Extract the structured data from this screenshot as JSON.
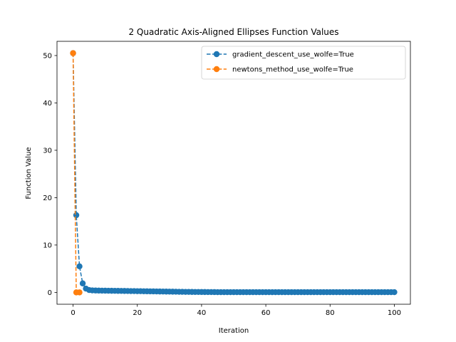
{
  "chart_data": {
    "type": "line",
    "title": "2 Quadratic Axis-Aligned Ellipses Function Values",
    "xlabel": "Iteration",
    "ylabel": "Function Value",
    "xlim": [
      -5,
      105
    ],
    "ylim": [
      -2.5,
      53
    ],
    "xticks": [
      0,
      20,
      40,
      60,
      80,
      100
    ],
    "yticks": [
      0,
      10,
      20,
      30,
      40,
      50
    ],
    "grid": false,
    "legend_position": "top-right",
    "series": [
      {
        "name": "gradient_descent_use_wolfe=True",
        "color": "#1f77b4",
        "linestyle": "dashed",
        "marker": "circle",
        "x": [
          0,
          1,
          2,
          3,
          4,
          5,
          6,
          7,
          8,
          9,
          10,
          11,
          12,
          13,
          14,
          15,
          16,
          17,
          18,
          19,
          20,
          21,
          22,
          23,
          24,
          25,
          26,
          27,
          28,
          29,
          30,
          31,
          32,
          33,
          34,
          35,
          36,
          37,
          38,
          39,
          40,
          41,
          42,
          43,
          44,
          45,
          46,
          47,
          48,
          49,
          50,
          51,
          52,
          53,
          54,
          55,
          56,
          57,
          58,
          59,
          60,
          61,
          62,
          63,
          64,
          65,
          66,
          67,
          68,
          69,
          70,
          71,
          72,
          73,
          74,
          75,
          76,
          77,
          78,
          79,
          80,
          81,
          82,
          83,
          84,
          85,
          86,
          87,
          88,
          89,
          90,
          91,
          92,
          93,
          94,
          95,
          96,
          97,
          98,
          99,
          100
        ],
        "y": [
          50.5,
          16.3,
          5.5,
          1.9,
          0.8,
          0.5,
          0.42,
          0.4,
          0.38,
          0.37,
          0.36,
          0.35,
          0.34,
          0.33,
          0.32,
          0.31,
          0.3,
          0.29,
          0.28,
          0.27,
          0.26,
          0.25,
          0.24,
          0.23,
          0.22,
          0.21,
          0.2,
          0.19,
          0.18,
          0.17,
          0.16,
          0.15,
          0.14,
          0.13,
          0.12,
          0.11,
          0.1,
          0.095,
          0.09,
          0.085,
          0.08,
          0.075,
          0.07,
          0.065,
          0.06,
          0.055,
          0.05,
          0.05,
          0.05,
          0.05,
          0.05,
          0.05,
          0.05,
          0.05,
          0.05,
          0.05,
          0.05,
          0.05,
          0.05,
          0.05,
          0.05,
          0.05,
          0.05,
          0.05,
          0.05,
          0.05,
          0.05,
          0.05,
          0.05,
          0.05,
          0.05,
          0.05,
          0.05,
          0.05,
          0.05,
          0.05,
          0.05,
          0.05,
          0.05,
          0.05,
          0.05,
          0.05,
          0.05,
          0.05,
          0.05,
          0.05,
          0.05,
          0.05,
          0.05,
          0.05,
          0.05,
          0.05,
          0.05,
          0.05,
          0.05,
          0.05,
          0.05,
          0.05,
          0.05,
          0.05,
          0.05
        ]
      },
      {
        "name": "newtons_method_use_wolfe=True",
        "color": "#ff7f0e",
        "linestyle": "dashed",
        "marker": "circle",
        "x": [
          0,
          1,
          2
        ],
        "y": [
          50.5,
          0.0,
          0.0
        ]
      }
    ]
  }
}
